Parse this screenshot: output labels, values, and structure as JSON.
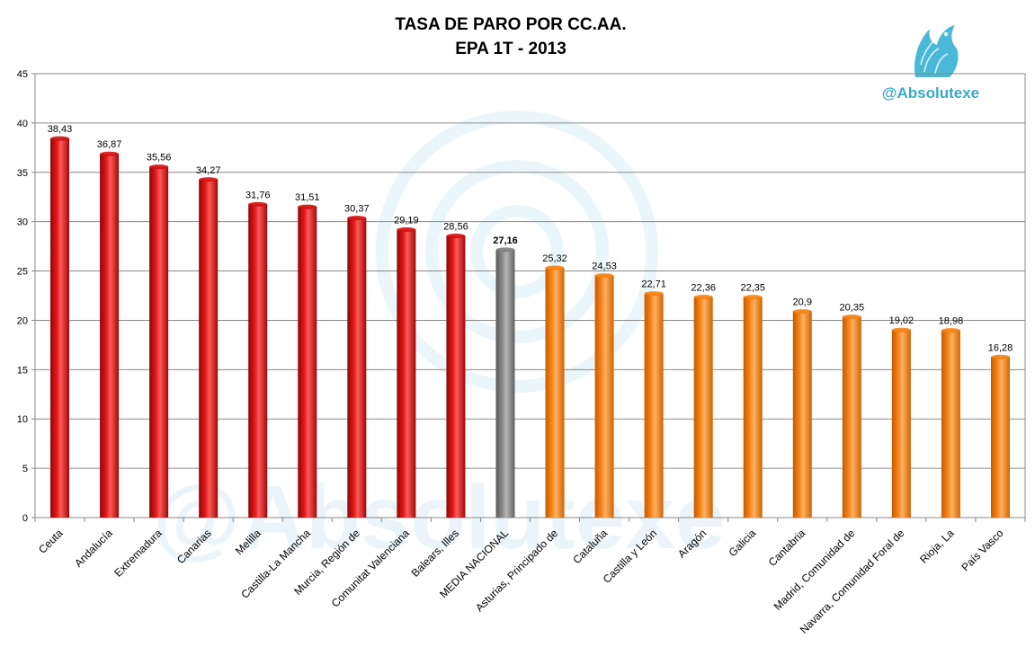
{
  "chart_data": {
    "type": "bar",
    "title_line1": "TASA DE PARO POR CC.AA.",
    "title_line2": "EPA 1T - 2013",
    "brand_text": "@Absolutexe",
    "watermark_text": "@Absolutexe",
    "logo_icon": "griffin-logo-icon",
    "ylim": [
      0,
      45
    ],
    "yticks": [
      0,
      5,
      10,
      15,
      20,
      25,
      30,
      35,
      40,
      45
    ],
    "grid": true,
    "legend": "none",
    "colors": {
      "high": "#d40f0f",
      "national": "#808080",
      "low": "#f5820f"
    },
    "categories": [
      "Ceuta",
      "Andalucía",
      "Extremadura",
      "Canarias",
      "Melilla",
      "Castilla-La Mancha",
      "Murcia, Región de",
      "Comunitat Valenciana",
      "Balears, Illes",
      "MEDIA NACIONAL",
      "Asturias, Principado de",
      "Cataluña",
      "Castilla y León",
      "Aragón",
      "Galicia",
      "Cantabria",
      "Madrid, Comunidad de",
      "Navarra, Comunidad Foral de",
      "Rioja, La",
      "País Vasco"
    ],
    "values": [
      38.43,
      36.87,
      35.56,
      34.27,
      31.76,
      31.51,
      30.37,
      29.19,
      28.56,
      27.16,
      25.32,
      24.53,
      22.71,
      22.36,
      22.35,
      20.9,
      20.35,
      19.02,
      18.98,
      16.28
    ],
    "value_labels": [
      "38,43",
      "36,87",
      "35,56",
      "34,27",
      "31,76",
      "31,51",
      "30,37",
      "29,19",
      "28,56",
      "27,16",
      "25,32",
      "24,53",
      "22,71",
      "22,36",
      "22,35",
      "20,9",
      "20,35",
      "19,02",
      "18,98",
      "16,28"
    ],
    "bar_groups": [
      "high",
      "high",
      "high",
      "high",
      "high",
      "high",
      "high",
      "high",
      "high",
      "national",
      "low",
      "low",
      "low",
      "low",
      "low",
      "low",
      "low",
      "low",
      "low",
      "low"
    ]
  }
}
